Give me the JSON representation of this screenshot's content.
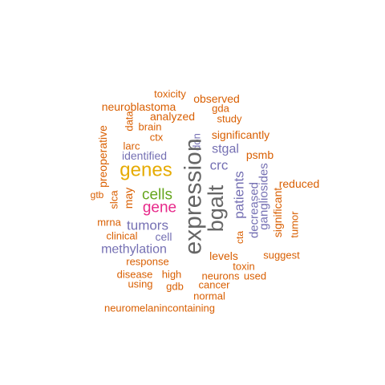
{
  "wordcloud": {
    "colors": {
      "orange": "#d95f02",
      "purple": "#7570b3",
      "gold": "#e6ab02",
      "green": "#66a61e",
      "magenta": "#e7298a",
      "gray": "#666666"
    },
    "words": [
      {
        "text": "toxicity",
        "color": "orange"
      },
      {
        "text": "observed",
        "color": "orange"
      },
      {
        "text": "neuroblastoma",
        "color": "orange"
      },
      {
        "text": "gda",
        "color": "orange"
      },
      {
        "text": "analyzed",
        "color": "orange"
      },
      {
        "text": "study",
        "color": "orange"
      },
      {
        "text": "brain",
        "color": "orange"
      },
      {
        "text": "data",
        "color": "orange"
      },
      {
        "text": "preoperative",
        "color": "orange"
      },
      {
        "text": "significantly",
        "color": "orange"
      },
      {
        "text": "larc",
        "color": "orange"
      },
      {
        "text": "ctx",
        "color": "orange"
      },
      {
        "text": "don",
        "color": "purple"
      },
      {
        "text": "stgal",
        "color": "purple"
      },
      {
        "text": "psmb",
        "color": "orange"
      },
      {
        "text": "identified",
        "color": "purple"
      },
      {
        "text": "expression",
        "color": "gray"
      },
      {
        "text": "crc",
        "color": "purple"
      },
      {
        "text": "genes",
        "color": "gold"
      },
      {
        "text": "gangliosides",
        "color": "purple"
      },
      {
        "text": "reduced",
        "color": "orange"
      },
      {
        "text": "patients",
        "color": "purple"
      },
      {
        "text": "may",
        "color": "orange"
      },
      {
        "text": "cells",
        "color": "green"
      },
      {
        "text": "bgalt",
        "color": "gray"
      },
      {
        "text": "gtb",
        "color": "orange"
      },
      {
        "text": "slca",
        "color": "orange"
      },
      {
        "text": "decreased",
        "color": "purple"
      },
      {
        "text": "significant",
        "color": "orange"
      },
      {
        "text": "gene",
        "color": "magenta"
      },
      {
        "text": "tumor",
        "color": "orange"
      },
      {
        "text": "mrna",
        "color": "orange"
      },
      {
        "text": "tumors",
        "color": "purple"
      },
      {
        "text": "cta",
        "color": "orange"
      },
      {
        "text": "clinical",
        "color": "orange"
      },
      {
        "text": "cell",
        "color": "purple"
      },
      {
        "text": "methylation",
        "color": "purple"
      },
      {
        "text": "suggest",
        "color": "orange"
      },
      {
        "text": "levels",
        "color": "orange"
      },
      {
        "text": "response",
        "color": "orange"
      },
      {
        "text": "toxin",
        "color": "orange"
      },
      {
        "text": "disease",
        "color": "orange"
      },
      {
        "text": "high",
        "color": "orange"
      },
      {
        "text": "neurons",
        "color": "orange"
      },
      {
        "text": "used",
        "color": "orange"
      },
      {
        "text": "using",
        "color": "orange"
      },
      {
        "text": "gdb",
        "color": "orange"
      },
      {
        "text": "cancer",
        "color": "orange"
      },
      {
        "text": "normal",
        "color": "orange"
      },
      {
        "text": "neuromelanincontaining",
        "color": "orange"
      }
    ]
  }
}
